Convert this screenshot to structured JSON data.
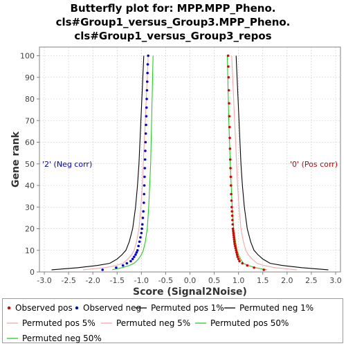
{
  "chart_data": {
    "type": "line",
    "title_lines": [
      "Butterfly plot for: MPP.MPP_Pheno.",
      "cls#Group1_versus_Group3.MPP_Pheno.",
      "cls#Group1_versus_Group3_repos"
    ],
    "xlabel": "Score (Signal2Noise)",
    "ylabel": "Gene rank",
    "xlim": [
      -3.1,
      3.1
    ],
    "ylim": [
      0,
      104
    ],
    "xticks": [
      "-3.0",
      "-2.5",
      "-2.0",
      "-1.5",
      "-1.0",
      "-0.5",
      "0.0",
      "0.5",
      "1.0",
      "1.5",
      "2.0",
      "2.5",
      "3.0"
    ],
    "yticks": [
      "0",
      "10",
      "20",
      "30",
      "40",
      "50",
      "60",
      "70",
      "80",
      "90",
      "100"
    ],
    "grid": true,
    "annotations": [
      {
        "text": "'2' (Neg corr)",
        "color": "#0000cc",
        "side": "left",
        "y": 50
      },
      {
        "text": "'0' (Pos corr)",
        "color": "#cc0000",
        "side": "right",
        "y": 50
      }
    ],
    "series": [
      {
        "name": "Observed pos",
        "kind": "points",
        "color": "#dd0000",
        "points": [
          [
            1.52,
            1
          ],
          [
            1.32,
            2
          ],
          [
            1.18,
            3
          ],
          [
            1.08,
            4
          ],
          [
            1.02,
            5
          ],
          [
            1.0,
            6
          ],
          [
            0.98,
            7
          ],
          [
            0.97,
            8
          ],
          [
            0.96,
            9
          ],
          [
            0.95,
            10
          ],
          [
            0.94,
            11
          ],
          [
            0.93,
            12
          ],
          [
            0.92,
            13
          ],
          [
            0.915,
            14
          ],
          [
            0.91,
            15
          ],
          [
            0.905,
            16
          ],
          [
            0.9,
            17
          ],
          [
            0.895,
            18
          ],
          [
            0.89,
            19
          ],
          [
            0.885,
            20
          ],
          [
            0.88,
            22
          ],
          [
            0.875,
            24
          ],
          [
            0.87,
            26
          ],
          [
            0.865,
            28
          ],
          [
            0.86,
            30
          ],
          [
            0.855,
            33
          ],
          [
            0.85,
            36
          ],
          [
            0.845,
            40
          ],
          [
            0.84,
            44
          ],
          [
            0.835,
            48
          ],
          [
            0.83,
            52
          ],
          [
            0.825,
            57
          ],
          [
            0.82,
            62
          ],
          [
            0.815,
            67
          ],
          [
            0.81,
            72
          ],
          [
            0.805,
            78
          ],
          [
            0.8,
            84
          ],
          [
            0.795,
            90
          ],
          [
            0.79,
            95
          ],
          [
            0.785,
            100
          ]
        ]
      },
      {
        "name": "Observed neg",
        "kind": "points",
        "color": "#0000dd",
        "points": [
          [
            -1.8,
            1
          ],
          [
            -1.52,
            2
          ],
          [
            -1.38,
            3
          ],
          [
            -1.3,
            4
          ],
          [
            -1.22,
            5
          ],
          [
            -1.18,
            6
          ],
          [
            -1.15,
            7
          ],
          [
            -1.12,
            8
          ],
          [
            -1.1,
            9
          ],
          [
            -1.08,
            10
          ],
          [
            -1.06,
            12
          ],
          [
            -1.04,
            14
          ],
          [
            -1.02,
            16
          ],
          [
            -1.0,
            18
          ],
          [
            -0.99,
            20
          ],
          [
            -0.98,
            22
          ],
          [
            -0.97,
            25
          ],
          [
            -0.96,
            28
          ],
          [
            -0.95,
            32
          ],
          [
            -0.945,
            36
          ],
          [
            -0.94,
            40
          ],
          [
            -0.935,
            44
          ],
          [
            -0.93,
            48
          ],
          [
            -0.925,
            52
          ],
          [
            -0.92,
            56
          ],
          [
            -0.915,
            60
          ],
          [
            -0.91,
            64
          ],
          [
            -0.905,
            68
          ],
          [
            -0.9,
            72
          ],
          [
            -0.895,
            76
          ],
          [
            -0.89,
            80
          ],
          [
            -0.885,
            84
          ],
          [
            -0.88,
            88
          ],
          [
            -0.875,
            92
          ],
          [
            -0.87,
            96
          ],
          [
            -0.86,
            100
          ]
        ]
      },
      {
        "name": "Permuted pos 1%",
        "kind": "line",
        "color": "#000000",
        "points": [
          [
            2.85,
            1
          ],
          [
            2.3,
            2
          ],
          [
            1.9,
            3
          ],
          [
            1.65,
            4
          ],
          [
            1.5,
            6
          ],
          [
            1.4,
            8
          ],
          [
            1.32,
            10
          ],
          [
            1.25,
            14
          ],
          [
            1.18,
            20
          ],
          [
            1.12,
            30
          ],
          [
            1.08,
            40
          ],
          [
            1.05,
            50
          ],
          [
            1.03,
            60
          ],
          [
            1.01,
            70
          ],
          [
            0.99,
            80
          ],
          [
            0.97,
            90
          ],
          [
            0.95,
            100
          ]
        ]
      },
      {
        "name": "Permuted neg 1%",
        "kind": "line",
        "color": "#000000",
        "points": [
          [
            -2.85,
            1
          ],
          [
            -2.3,
            2
          ],
          [
            -1.9,
            3
          ],
          [
            -1.65,
            4
          ],
          [
            -1.5,
            6
          ],
          [
            -1.4,
            8
          ],
          [
            -1.32,
            10
          ],
          [
            -1.25,
            14
          ],
          [
            -1.18,
            20
          ],
          [
            -1.12,
            30
          ],
          [
            -1.08,
            40
          ],
          [
            -1.05,
            50
          ],
          [
            -1.03,
            60
          ],
          [
            -1.01,
            70
          ],
          [
            -0.99,
            80
          ],
          [
            -0.97,
            90
          ],
          [
            -0.95,
            100
          ]
        ]
      },
      {
        "name": "Permuted pos 5%",
        "kind": "line",
        "color": "#f4a8a8",
        "points": [
          [
            2.2,
            1
          ],
          [
            1.75,
            2
          ],
          [
            1.52,
            3
          ],
          [
            1.38,
            4
          ],
          [
            1.28,
            6
          ],
          [
            1.2,
            8
          ],
          [
            1.15,
            10
          ],
          [
            1.1,
            14
          ],
          [
            1.05,
            20
          ],
          [
            1.01,
            30
          ],
          [
            0.98,
            40
          ],
          [
            0.96,
            50
          ],
          [
            0.94,
            60
          ],
          [
            0.92,
            70
          ],
          [
            0.9,
            80
          ],
          [
            0.88,
            90
          ],
          [
            0.86,
            100
          ]
        ]
      },
      {
        "name": "Permuted neg 5%",
        "kind": "line",
        "color": "#f4a8a8",
        "points": [
          [
            -2.2,
            1
          ],
          [
            -1.75,
            2
          ],
          [
            -1.52,
            3
          ],
          [
            -1.38,
            4
          ],
          [
            -1.28,
            6
          ],
          [
            -1.2,
            8
          ],
          [
            -1.15,
            10
          ],
          [
            -1.1,
            14
          ],
          [
            -1.05,
            20
          ],
          [
            -1.01,
            30
          ],
          [
            -0.98,
            40
          ],
          [
            -0.96,
            50
          ],
          [
            -0.94,
            60
          ],
          [
            -0.92,
            70
          ],
          [
            -0.9,
            80
          ],
          [
            -0.88,
            90
          ],
          [
            -0.86,
            100
          ]
        ]
      },
      {
        "name": "Permuted pos 50%",
        "kind": "line",
        "color": "#22cc22",
        "points": [
          [
            1.58,
            1
          ],
          [
            1.35,
            2
          ],
          [
            1.2,
            3
          ],
          [
            1.1,
            4
          ],
          [
            1.04,
            6
          ],
          [
            1.0,
            8
          ],
          [
            0.97,
            10
          ],
          [
            0.94,
            14
          ],
          [
            0.9,
            20
          ],
          [
            0.87,
            30
          ],
          [
            0.85,
            40
          ],
          [
            0.83,
            50
          ],
          [
            0.815,
            60
          ],
          [
            0.8,
            70
          ],
          [
            0.79,
            80
          ],
          [
            0.78,
            90
          ],
          [
            0.77,
            100
          ]
        ]
      },
      {
        "name": "Permuted neg 50%",
        "kind": "line",
        "color": "#22cc22",
        "points": [
          [
            -1.6,
            1
          ],
          [
            -1.4,
            2
          ],
          [
            -1.25,
            3
          ],
          [
            -1.15,
            4
          ],
          [
            -1.06,
            6
          ],
          [
            -1.0,
            8
          ],
          [
            -0.96,
            10
          ],
          [
            -0.92,
            14
          ],
          [
            -0.88,
            20
          ],
          [
            -0.85,
            30
          ],
          [
            -0.83,
            40
          ],
          [
            -0.81,
            50
          ],
          [
            -0.8,
            60
          ],
          [
            -0.79,
            70
          ],
          [
            -0.78,
            80
          ],
          [
            -0.77,
            90
          ],
          [
            -0.76,
            100
          ]
        ]
      }
    ],
    "legend": {
      "placement": "bottom",
      "items": [
        {
          "label": "Observed pos",
          "style": "dot",
          "color": "#dd0000"
        },
        {
          "label": "Observed neg",
          "style": "dot",
          "color": "#0000dd"
        },
        {
          "label": "Permuted pos 1%",
          "style": "line",
          "color": "#000000"
        },
        {
          "label": "Permuted neg 1%",
          "style": "line",
          "color": "#000000"
        },
        {
          "label": "Permuted pos 5%",
          "style": "line",
          "color": "#f4a8a8"
        },
        {
          "label": "Permuted neg 5%",
          "style": "line",
          "color": "#f4a8a8"
        },
        {
          "label": "Permuted pos 50%",
          "style": "line",
          "color": "#22cc22"
        },
        {
          "label": "Permuted neg 50%",
          "style": "line",
          "color": "#22cc22"
        }
      ]
    }
  }
}
